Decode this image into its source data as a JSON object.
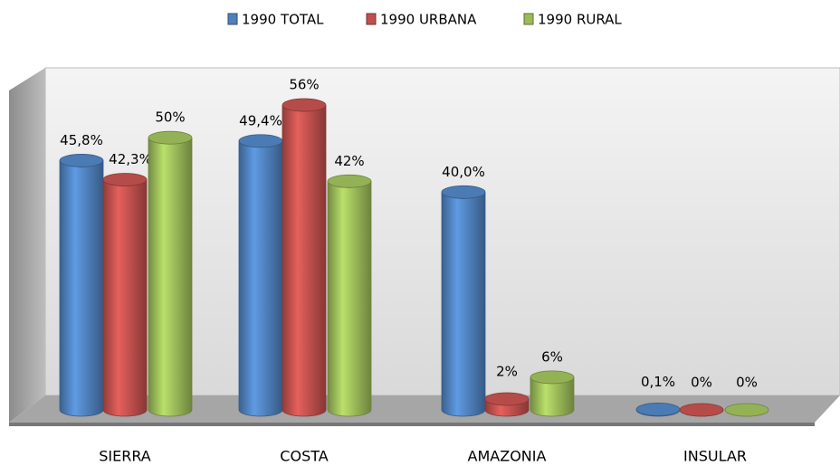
{
  "chart_data": {
    "type": "bar",
    "categories": [
      "SIERRA",
      "COSTA",
      "AMAZONIA",
      "INSULAR"
    ],
    "series": [
      {
        "name": "1990 TOTAL",
        "color": "#4f81bd",
        "values": [
          45.8,
          49.4,
          40.0,
          0.1
        ],
        "value_labels": [
          "45,8%",
          "49,4%",
          "40,0%",
          "0,1%"
        ]
      },
      {
        "name": "1990 URBANA",
        "color": "#c0504d",
        "values": [
          42.3,
          56,
          2,
          0
        ],
        "value_labels": [
          "42,3%",
          "56%",
          "2%",
          "0%"
        ]
      },
      {
        "name": "1990 RURAL",
        "color": "#9bbb59",
        "values": [
          50,
          42,
          6,
          0
        ],
        "value_labels": [
          "50%",
          "42%",
          "6%",
          "0%"
        ]
      }
    ],
    "ylim": [
      0,
      60
    ],
    "legend": "top"
  }
}
